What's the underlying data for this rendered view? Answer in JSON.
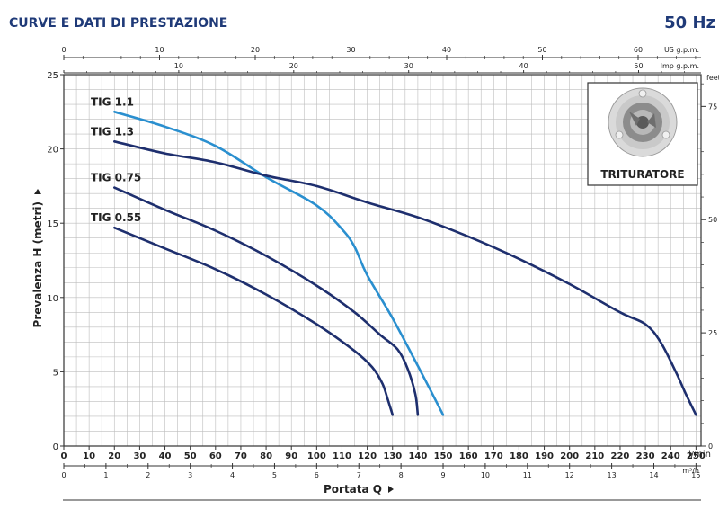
{
  "header": {
    "title": "CURVE E DATI DI PRESTAZIONE",
    "frequency": "50 Hz"
  },
  "colors": {
    "dark_series": "#1e2f6e",
    "light_series": "#2a8fcf",
    "title": "#1f3a78",
    "grid": "#b9b9b9",
    "frame": "#333333"
  },
  "chart_data": {
    "type": "line",
    "xlabel": "Portata Q",
    "ylabel": "Prevalenza H (metri)",
    "xlim": [
      0,
      252
    ],
    "ylim": [
      0,
      25
    ],
    "grid": true,
    "primary_x_unit": "l/min",
    "primary_x_ticks": [
      0,
      10,
      20,
      30,
      40,
      50,
      60,
      70,
      80,
      90,
      100,
      110,
      120,
      130,
      140,
      150,
      160,
      170,
      180,
      190,
      200,
      210,
      220,
      230,
      240,
      250
    ],
    "y_ticks": [
      0,
      5,
      10,
      15,
      20,
      25
    ],
    "secondary_axes": {
      "bottom_m3h": {
        "unit": "m³/h",
        "ticks": [
          0,
          1,
          2,
          3,
          4,
          5,
          6,
          7,
          8,
          9,
          10,
          11,
          12,
          13,
          14,
          15
        ],
        "lpm_per_unit": 16.6667
      },
      "top_us_gpm": {
        "unit": "US g.p.m.",
        "ticks": [
          0,
          10,
          20,
          30,
          40,
          50,
          60
        ],
        "labeled": [
          0,
          10,
          20,
          30,
          40,
          50,
          60
        ],
        "minor_step": 2,
        "lpm_per_unit": 3.7854
      },
      "top_imp_gpm": {
        "unit": "Imp g.p.m.",
        "ticks": [
          0,
          10,
          20,
          30,
          40,
          50
        ],
        "labeled": [
          10,
          20,
          30,
          40,
          50
        ],
        "minor_step": 2,
        "lpm_per_unit": 4.546
      },
      "right_feet": {
        "unit": "feet",
        "labeled": [
          0,
          25,
          50,
          75
        ],
        "minor_step": 5,
        "m_per_unit": 0.3048
      }
    },
    "series": [
      {
        "name": "TIG 1.1",
        "color": "#2a8fcf",
        "points": [
          [
            20,
            22.5
          ],
          [
            40,
            21.5
          ],
          [
            60,
            20.2
          ],
          [
            80,
            18.1
          ],
          [
            100,
            16.2
          ],
          [
            110,
            14.6
          ],
          [
            115,
            13.4
          ],
          [
            120,
            11.5
          ],
          [
            130,
            8.6
          ],
          [
            140,
            5.4
          ],
          [
            150,
            2.1
          ]
        ]
      },
      {
        "name": "TIG 1.3",
        "color": "#1e2f6e",
        "points": [
          [
            20,
            20.5
          ],
          [
            40,
            19.7
          ],
          [
            60,
            19.1
          ],
          [
            80,
            18.2
          ],
          [
            100,
            17.5
          ],
          [
            120,
            16.4
          ],
          [
            140,
            15.4
          ],
          [
            160,
            14.1
          ],
          [
            180,
            12.6
          ],
          [
            200,
            10.9
          ],
          [
            220,
            9.0
          ],
          [
            230,
            8.2
          ],
          [
            236,
            7.0
          ],
          [
            242,
            5.0
          ],
          [
            246,
            3.5
          ],
          [
            250,
            2.1
          ]
        ]
      },
      {
        "name": "TIG 0.75",
        "color": "#1e2f6e",
        "points": [
          [
            20,
            17.4
          ],
          [
            40,
            15.9
          ],
          [
            60,
            14.5
          ],
          [
            80,
            12.8
          ],
          [
            100,
            10.8
          ],
          [
            115,
            9.0
          ],
          [
            125,
            7.5
          ],
          [
            132,
            6.5
          ],
          [
            136,
            5.2
          ],
          [
            139,
            3.5
          ],
          [
            140,
            2.1
          ]
        ]
      },
      {
        "name": "TIG 0.55",
        "color": "#1e2f6e",
        "points": [
          [
            20,
            14.7
          ],
          [
            40,
            13.3
          ],
          [
            60,
            11.9
          ],
          [
            80,
            10.2
          ],
          [
            100,
            8.2
          ],
          [
            115,
            6.4
          ],
          [
            122,
            5.3
          ],
          [
            126,
            4.2
          ],
          [
            128,
            3.2
          ],
          [
            130,
            2.1
          ]
        ]
      }
    ],
    "inset": {
      "label": "TRITURATORE",
      "image": "grinder-impeller-photo"
    }
  }
}
